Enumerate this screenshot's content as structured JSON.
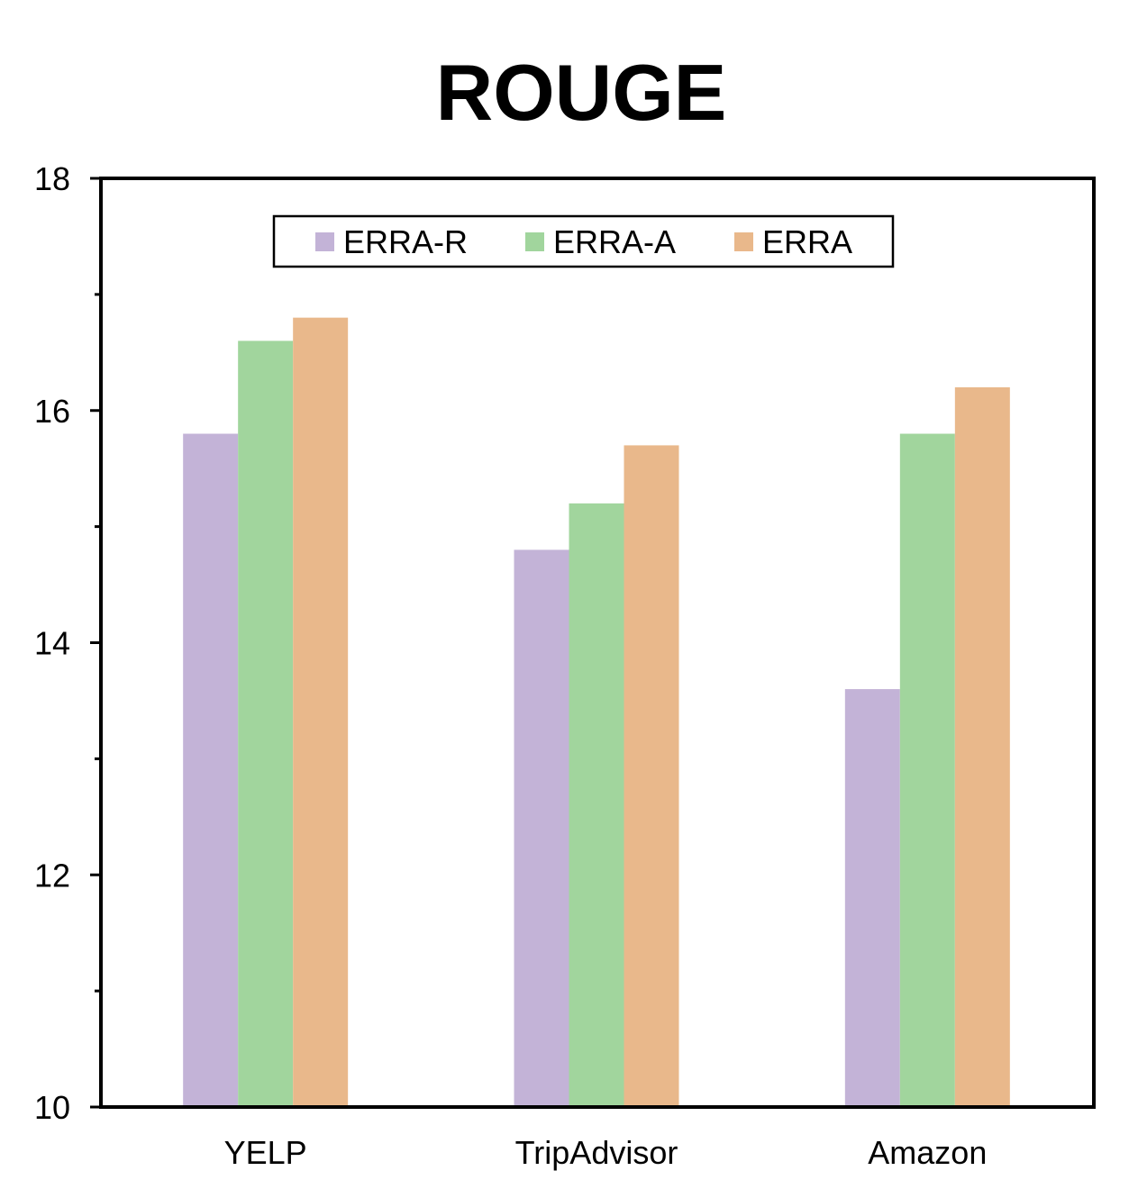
{
  "chart_data": {
    "type": "bar",
    "title": "ROUGE",
    "xlabel": "",
    "ylabel": "",
    "categories": [
      "YELP",
      "TripAdvisor",
      "Amazon"
    ],
    "series": [
      {
        "name": "ERRA-R",
        "color": "#c3b3d7",
        "values": [
          15.8,
          14.8,
          13.6
        ]
      },
      {
        "name": "ERRA-A",
        "color": "#a1d59d",
        "values": [
          16.6,
          15.2,
          15.8
        ]
      },
      {
        "name": "ERRA",
        "color": "#e9b88b",
        "values": [
          16.8,
          15.7,
          16.2
        ]
      }
    ],
    "ylim": [
      10,
      18
    ],
    "yticks": [
      "10",
      "12",
      "14",
      "16",
      "18"
    ],
    "minor_ticks": [
      11,
      13,
      15,
      17
    ],
    "grid": false,
    "legend_position": "top"
  }
}
